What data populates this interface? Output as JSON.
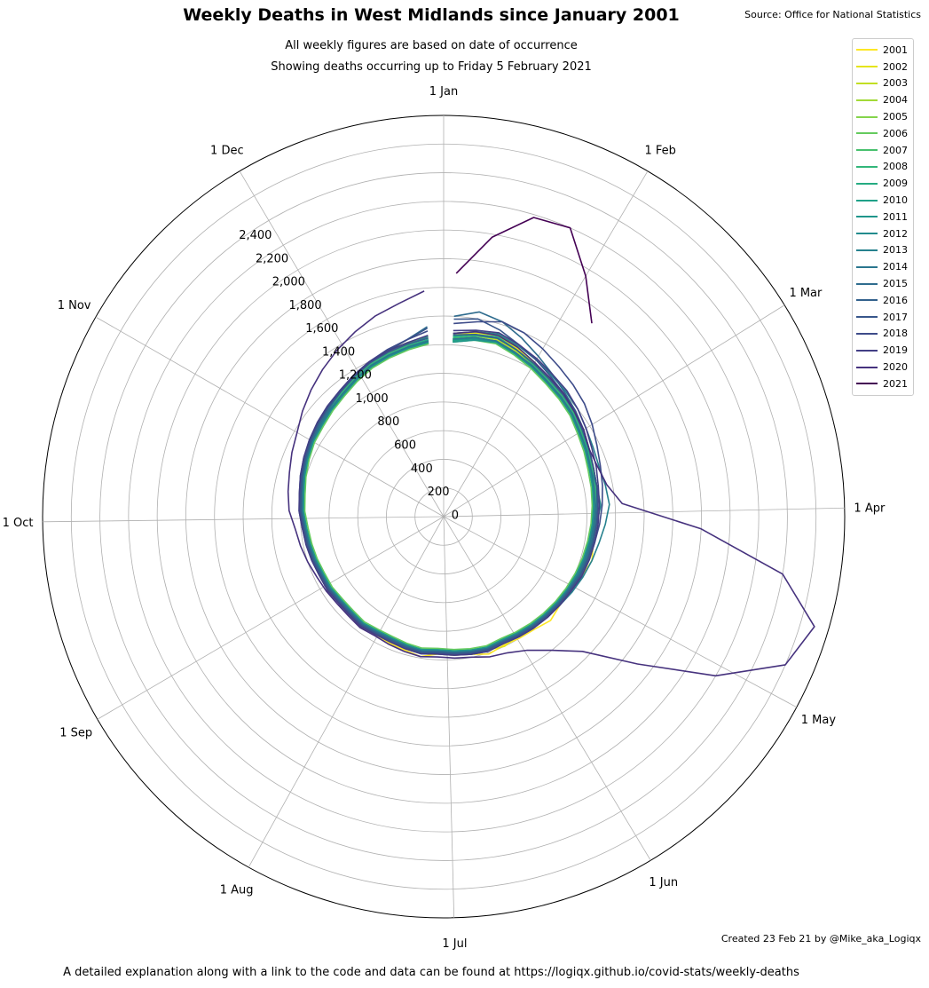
{
  "title": "Weekly Deaths in West Midlands since January 2001",
  "source": "Source: Office for National Statistics",
  "subtitle1": "All weekly figures are based on date of occurrence",
  "subtitle2": "Showing deaths occurring up to Friday 5 February 2021",
  "credit": "Created 23 Feb 21 by @Mike_aka_Logiqx",
  "footer": "A detailed explanation along with a link to the code and data can be found at https://logiqx.github.io/covid-stats/weekly-deaths",
  "chart_data": {
    "type": "line",
    "projection": "polar",
    "direction": "clockwise",
    "zero_at": "top",
    "angle_labels": [
      "1 Jan",
      "1 Feb",
      "1 Mar",
      "1 Apr",
      "1 May",
      "1 Jun",
      "1 Jul",
      "1 Aug",
      "1 Sep",
      "1 Oct",
      "1 Nov",
      "1 Dec"
    ],
    "radial_ticks": [
      "0",
      "200",
      "400",
      "600",
      "800",
      "1,000",
      "1,200",
      "1,400",
      "1,600",
      "1,800",
      "2,000",
      "2,200",
      "2,400"
    ],
    "r_range": [
      0,
      2800
    ],
    "grid": true,
    "legend": "upper right",
    "x_units": "week of year",
    "y_units": "weekly deaths",
    "series": [
      {
        "name": "2001",
        "color": "#fde725",
        "values": [
          1280,
          1310,
          1330,
          1290,
          1250,
          1210,
          1190,
          1170,
          1140,
          1120,
          1100,
          1090,
          1080,
          1070,
          1060,
          1080,
          1050,
          1030,
          1020,
          1040,
          1010,
          1000,
          990,
          1010,
          980,
          970,
          960,
          990,
          970,
          960,
          950,
          960,
          950,
          940,
          960,
          950,
          960,
          940,
          960,
          980,
          1000,
          1020,
          1040,
          1060,
          1080,
          1100,
          1120,
          1150,
          1180,
          1200,
          1230,
          1260
        ]
      },
      {
        "name": "2002",
        "color": "#e5e419",
        "values": [
          1270,
          1300,
          1320,
          1280,
          1240,
          1200,
          1180,
          1160,
          1130,
          1110,
          1090,
          1080,
          1070,
          1060,
          1050,
          1050,
          1040,
          1030,
          1010,
          1000,
          990,
          980,
          1000,
          980,
          970,
          960,
          950,
          960,
          950,
          940,
          940,
          950,
          940,
          930,
          940,
          950,
          960,
          970,
          990,
          1000,
          1010,
          1030,
          1050,
          1070,
          1090,
          1110,
          1130,
          1160,
          1190,
          1220,
          1240,
          1260
        ]
      },
      {
        "name": "2003",
        "color": "#c2df23",
        "values": [
          1240,
          1280,
          1290,
          1260,
          1220,
          1190,
          1170,
          1150,
          1120,
          1100,
          1080,
          1070,
          1060,
          1050,
          1040,
          1050,
          1030,
          1020,
          1000,
          990,
          980,
          970,
          960,
          980,
          960,
          950,
          940,
          950,
          940,
          930,
          930,
          940,
          930,
          930,
          940,
          940,
          950,
          960,
          970,
          990,
          1000,
          1020,
          1040,
          1060,
          1070,
          1090,
          1110,
          1140,
          1170,
          1190,
          1210,
          1230
        ]
      },
      {
        "name": "2004",
        "color": "#a2da37",
        "values": [
          1230,
          1260,
          1270,
          1240,
          1210,
          1180,
          1160,
          1140,
          1110,
          1090,
          1070,
          1060,
          1050,
          1040,
          1030,
          1020,
          1010,
          1000,
          990,
          980,
          970,
          960,
          950,
          960,
          950,
          940,
          930,
          940,
          930,
          920,
          920,
          930,
          920,
          920,
          930,
          930,
          940,
          950,
          960,
          980,
          990,
          1010,
          1030,
          1050,
          1060,
          1080,
          1100,
          1130,
          1160,
          1180,
          1200,
          1220
        ]
      },
      {
        "name": "2005",
        "color": "#84d44b",
        "values": [
          1260,
          1290,
          1300,
          1270,
          1230,
          1200,
          1180,
          1160,
          1130,
          1110,
          1090,
          1080,
          1070,
          1060,
          1050,
          1040,
          1030,
          1010,
          1000,
          990,
          980,
          970,
          960,
          970,
          960,
          950,
          940,
          950,
          940,
          930,
          930,
          940,
          930,
          930,
          940,
          940,
          950,
          960,
          970,
          990,
          1000,
          1020,
          1040,
          1060,
          1070,
          1090,
          1110,
          1140,
          1170,
          1190,
          1210,
          1230
        ]
      },
      {
        "name": "2006",
        "color": "#65cb5e",
        "values": [
          1220,
          1250,
          1260,
          1230,
          1200,
          1170,
          1150,
          1130,
          1100,
          1080,
          1060,
          1050,
          1040,
          1030,
          1020,
          1010,
          1000,
          990,
          980,
          970,
          960,
          950,
          940,
          950,
          940,
          930,
          920,
          930,
          920,
          910,
          910,
          920,
          910,
          910,
          920,
          920,
          930,
          940,
          950,
          970,
          980,
          1000,
          1020,
          1040,
          1050,
          1070,
          1090,
          1120,
          1150,
          1170,
          1190,
          1210
        ]
      },
      {
        "name": "2007",
        "color": "#48c16e",
        "values": [
          1230,
          1260,
          1270,
          1240,
          1210,
          1180,
          1160,
          1140,
          1110,
          1090,
          1070,
          1060,
          1050,
          1040,
          1030,
          1020,
          1010,
          1000,
          990,
          980,
          970,
          960,
          950,
          960,
          950,
          940,
          930,
          940,
          930,
          920,
          920,
          930,
          920,
          920,
          930,
          930,
          940,
          950,
          960,
          980,
          990,
          1010,
          1030,
          1050,
          1060,
          1080,
          1100,
          1130,
          1160,
          1180,
          1200,
          1220
        ]
      },
      {
        "name": "2008",
        "color": "#32b67a",
        "values": [
          1250,
          1280,
          1300,
          1270,
          1230,
          1200,
          1180,
          1160,
          1130,
          1110,
          1090,
          1080,
          1070,
          1060,
          1050,
          1040,
          1030,
          1020,
          1000,
          990,
          980,
          970,
          960,
          970,
          960,
          950,
          940,
          950,
          940,
          930,
          930,
          940,
          930,
          930,
          940,
          940,
          950,
          960,
          970,
          990,
          1000,
          1020,
          1040,
          1060,
          1080,
          1100,
          1120,
          1150,
          1180,
          1200,
          1220,
          1240
        ]
      },
      {
        "name": "2009",
        "color": "#25ab82",
        "values": [
          1260,
          1290,
          1310,
          1270,
          1240,
          1210,
          1190,
          1170,
          1140,
          1110,
          1080,
          1060,
          1050,
          1040,
          1030,
          1020,
          1010,
          1000,
          990,
          980,
          970,
          960,
          950,
          960,
          950,
          940,
          930,
          940,
          930,
          920,
          920,
          930,
          920,
          920,
          930,
          930,
          940,
          950,
          960,
          980,
          990,
          1010,
          1030,
          1050,
          1070,
          1090,
          1110,
          1140,
          1170,
          1190,
          1210,
          1240
        ]
      },
      {
        "name": "2010",
        "color": "#1fa188",
        "values": [
          1230,
          1260,
          1280,
          1250,
          1220,
          1190,
          1170,
          1150,
          1120,
          1100,
          1080,
          1070,
          1060,
          1050,
          1040,
          1030,
          1020,
          1010,
          1000,
          990,
          980,
          970,
          960,
          970,
          960,
          950,
          940,
          950,
          940,
          930,
          930,
          940,
          930,
          930,
          940,
          940,
          950,
          960,
          970,
          990,
          1000,
          1020,
          1040,
          1060,
          1070,
          1090,
          1110,
          1140,
          1170,
          1190,
          1210,
          1230
        ]
      },
      {
        "name": "2011",
        "color": "#1f968b",
        "values": [
          1220,
          1250,
          1270,
          1240,
          1210,
          1180,
          1160,
          1140,
          1110,
          1090,
          1070,
          1060,
          1050,
          1040,
          1030,
          1020,
          1010,
          1000,
          990,
          980,
          970,
          960,
          950,
          960,
          950,
          940,
          930,
          940,
          930,
          920,
          920,
          930,
          920,
          920,
          930,
          930,
          940,
          950,
          960,
          980,
          990,
          1010,
          1030,
          1050,
          1060,
          1080,
          1100,
          1130,
          1160,
          1180,
          1200,
          1220
        ]
      },
      {
        "name": "2012",
        "color": "#228b8d",
        "values": [
          1240,
          1260,
          1280,
          1250,
          1220,
          1190,
          1170,
          1150,
          1120,
          1100,
          1080,
          1090,
          1100,
          1070,
          1050,
          1040,
          1030,
          1010,
          1000,
          990,
          980,
          970,
          960,
          970,
          960,
          950,
          940,
          950,
          940,
          930,
          930,
          940,
          930,
          930,
          940,
          940,
          950,
          960,
          970,
          990,
          1000,
          1020,
          1040,
          1060,
          1070,
          1090,
          1110,
          1140,
          1170,
          1190,
          1210,
          1230
        ]
      },
      {
        "name": "2013",
        "color": "#26818e",
        "values": [
          1280,
          1310,
          1330,
          1300,
          1270,
          1240,
          1220,
          1200,
          1170,
          1150,
          1140,
          1150,
          1160,
          1130,
          1100,
          1080,
          1060,
          1040,
          1020,
          1000,
          990,
          980,
          970,
          980,
          970,
          960,
          950,
          960,
          950,
          940,
          940,
          950,
          940,
          940,
          950,
          950,
          960,
          970,
          980,
          1000,
          1010,
          1030,
          1050,
          1070,
          1090,
          1110,
          1130,
          1160,
          1190,
          1210,
          1230,
          1260
        ]
      },
      {
        "name": "2014",
        "color": "#2a768e",
        "values": [
          1240,
          1270,
          1280,
          1250,
          1220,
          1190,
          1170,
          1150,
          1120,
          1100,
          1080,
          1070,
          1060,
          1050,
          1040,
          1030,
          1020,
          1010,
          1000,
          990,
          980,
          970,
          960,
          970,
          960,
          950,
          940,
          950,
          940,
          930,
          930,
          940,
          930,
          930,
          940,
          940,
          950,
          960,
          970,
          990,
          1000,
          1020,
          1040,
          1060,
          1070,
          1090,
          1110,
          1140,
          1170,
          1190,
          1210,
          1230
        ]
      },
      {
        "name": "2015",
        "color": "#2f6c8e",
        "values": [
          1400,
          1450,
          1420,
          1360,
          1300,
          1250,
          1210,
          1180,
          1150,
          1120,
          1100,
          1090,
          1070,
          1060,
          1050,
          1040,
          1030,
          1010,
          1000,
          990,
          980,
          970,
          960,
          970,
          960,
          950,
          940,
          950,
          940,
          930,
          930,
          940,
          930,
          930,
          940,
          940,
          950,
          960,
          970,
          990,
          1000,
          1020,
          1040,
          1060,
          1080,
          1100,
          1130,
          1160,
          1190,
          1220,
          1260,
          1330
        ]
      },
      {
        "name": "2016",
        "color": "#33618d",
        "values": [
          1270,
          1290,
          1300,
          1270,
          1240,
          1210,
          1190,
          1170,
          1140,
          1120,
          1100,
          1090,
          1080,
          1070,
          1060,
          1050,
          1040,
          1020,
          1010,
          1000,
          990,
          980,
          970,
          980,
          970,
          960,
          950,
          960,
          950,
          940,
          940,
          950,
          940,
          940,
          950,
          950,
          960,
          970,
          980,
          1000,
          1010,
          1030,
          1050,
          1070,
          1090,
          1110,
          1130,
          1160,
          1190,
          1210,
          1230,
          1250
        ]
      },
      {
        "name": "2017",
        "color": "#38568b",
        "values": [
          1380,
          1400,
          1360,
          1310,
          1270,
          1230,
          1200,
          1180,
          1150,
          1120,
          1100,
          1090,
          1080,
          1070,
          1060,
          1050,
          1040,
          1020,
          1010,
          1000,
          990,
          980,
          970,
          980,
          970,
          960,
          950,
          960,
          950,
          940,
          940,
          950,
          940,
          940,
          950,
          950,
          960,
          970,
          980,
          1000,
          1010,
          1030,
          1050,
          1070,
          1090,
          1110,
          1130,
          1160,
          1190,
          1220,
          1260,
          1320
        ]
      },
      {
        "name": "2018",
        "color": "#3d4b89",
        "values": [
          1350,
          1380,
          1420,
          1400,
          1360,
          1320,
          1290,
          1260,
          1220,
          1180,
          1150,
          1130,
          1110,
          1090,
          1070,
          1060,
          1050,
          1030,
          1020,
          1010,
          1000,
          990,
          980,
          990,
          980,
          970,
          960,
          970,
          960,
          950,
          950,
          960,
          950,
          950,
          960,
          960,
          970,
          980,
          990,
          1010,
          1020,
          1040,
          1060,
          1080,
          1100,
          1120,
          1140,
          1170,
          1200,
          1230,
          1260,
          1300
        ]
      },
      {
        "name": "2019",
        "color": "#423f85",
        "values": [
          1300,
          1320,
          1340,
          1310,
          1280,
          1250,
          1230,
          1200,
          1170,
          1140,
          1120,
          1100,
          1090,
          1080,
          1070,
          1060,
          1050,
          1030,
          1020,
          1010,
          1000,
          990,
          980,
          990,
          980,
          970,
          960,
          970,
          960,
          950,
          950,
          960,
          950,
          950,
          960,
          960,
          970,
          980,
          990,
          1010,
          1020,
          1040,
          1060,
          1080,
          1100,
          1120,
          1140,
          1170,
          1200,
          1220,
          1240,
          1270
        ]
      },
      {
        "name": "2020",
        "color": "#46327e",
        "values": [
          1280,
          1310,
          1320,
          1290,
          1250,
          1220,
          1200,
          1170,
          1150,
          1120,
          1130,
          1160,
          1250,
          1800,
          2400,
          2700,
          2600,
          2200,
          1700,
          1350,
          1200,
          1100,
          1050,
          1030,
          1000,
          990,
          980,
          990,
          980,
          970,
          960,
          970,
          960,
          960,
          970,
          980,
          1000,
          1020,
          1040,
          1080,
          1100,
          1120,
          1150,
          1180,
          1230,
          1280,
          1330,
          1380,
          1430,
          1480,
          1520,
          1580
        ]
      },
      {
        "name": "2021",
        "color": "#440154",
        "values": [
          1700,
          1980,
          2180,
          2200,
          1950,
          1700
        ]
      }
    ]
  }
}
